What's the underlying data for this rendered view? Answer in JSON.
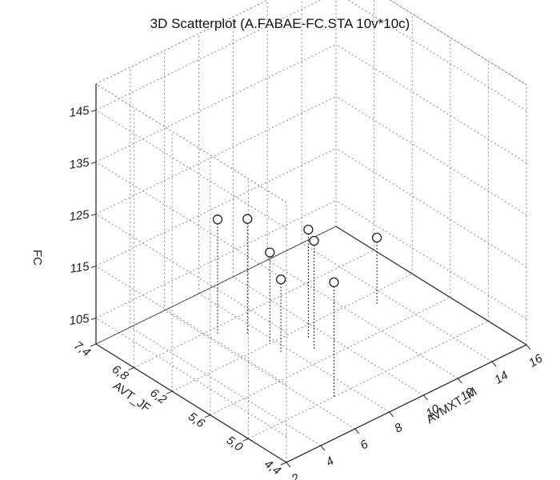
{
  "chart_data": {
    "type": "scatter",
    "title": "3D Scatterplot (A.FABAE-FC.STA 10v*10c)",
    "xlabel": "AVMXT_M",
    "ylabel": "AVT_JF",
    "zlabel": "FC",
    "x_ticks": [
      "2",
      "4",
      "6",
      "8",
      "10",
      "12",
      "14",
      "16"
    ],
    "y_ticks": [
      "4,4",
      "5,0",
      "5,6",
      "6,2",
      "6,8",
      "7,4"
    ],
    "z_ticks": [
      "105",
      "115",
      "125",
      "135",
      "145"
    ],
    "xlim": [
      2,
      16
    ],
    "ylim": [
      4.4,
      7.4
    ],
    "zlim": [
      100,
      150
    ],
    "grid": true,
    "points": [
      {
        "x": 6.5,
        "y": 6.7,
        "z": 122
      },
      {
        "x": 7.5,
        "y": 6.5,
        "z": 122
      },
      {
        "x": 7.0,
        "y": 5.0,
        "z": 122
      },
      {
        "x": 7.7,
        "y": 6.2,
        "z": 117.5
      },
      {
        "x": 7.6,
        "y": 6.0,
        "z": 114
      },
      {
        "x": 8.8,
        "y": 5.8,
        "z": 121
      },
      {
        "x": 9.2,
        "y": 6.0,
        "z": 121
      },
      {
        "x": 13.2,
        "y": 6.0,
        "z": 113
      }
    ]
  }
}
